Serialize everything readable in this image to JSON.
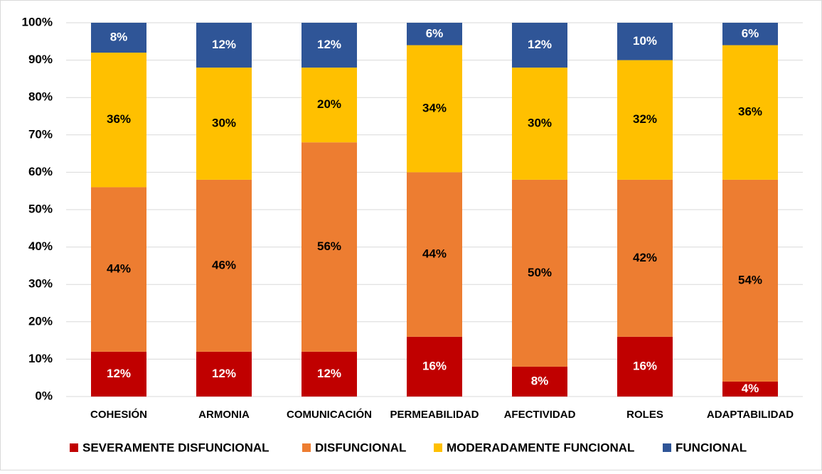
{
  "chart_data": {
    "type": "stacked_bar",
    "categories": [
      "COHESIÓN",
      "ARMONIA",
      "COMUNICACIÓN",
      "PERMEABILIDAD",
      "AFECTIVIDAD",
      "ROLES",
      "ADAPTABILIDAD"
    ],
    "series": [
      {
        "name": "SEVERAMENTE DISFUNCIONAL",
        "color": "#c00000",
        "label_color": "#ffffff",
        "values": [
          12,
          12,
          12,
          16,
          8,
          16,
          4
        ],
        "value_labels": [
          "12%",
          "12%",
          "12%",
          "16%",
          "8%",
          "16%",
          "4%"
        ]
      },
      {
        "name": "DISFUNCIONAL",
        "color": "#ed7d31",
        "label_color": "#000000",
        "values": [
          44,
          46,
          56,
          44,
          50,
          42,
          54
        ],
        "value_labels": [
          "44%",
          "46%",
          "56%",
          "44%",
          "50%",
          "42%",
          "54%"
        ]
      },
      {
        "name": "MODERADAMENTE FUNCIONAL",
        "color": "#ffc000",
        "label_color": "#000000",
        "values": [
          36,
          30,
          20,
          34,
          30,
          32,
          36
        ],
        "value_labels": [
          "36%",
          "30%",
          "20%",
          "34%",
          "30%",
          "32%",
          "36%"
        ]
      },
      {
        "name": "FUNCIONAL",
        "color": "#2f5597",
        "label_color": "#ffffff",
        "values": [
          8,
          12,
          12,
          6,
          12,
          10,
          6
        ],
        "value_labels": [
          "8%",
          "12%",
          "12%",
          "6%",
          "12%",
          "10%",
          "6%"
        ]
      }
    ],
    "ylim": [
      0,
      100
    ],
    "yticks": [
      {
        "value": 0,
        "label": "0%"
      },
      {
        "value": 10,
        "label": "10%"
      },
      {
        "value": 20,
        "label": "20%"
      },
      {
        "value": 30,
        "label": "30%"
      },
      {
        "value": 40,
        "label": "40%"
      },
      {
        "value": 50,
        "label": "50%"
      },
      {
        "value": 60,
        "label": "60%"
      },
      {
        "value": 70,
        "label": "70%"
      },
      {
        "value": 80,
        "label": "80%"
      },
      {
        "value": 90,
        "label": "90%"
      },
      {
        "value": 100,
        "label": "100%"
      }
    ],
    "grid": true,
    "legend": "bottom"
  }
}
